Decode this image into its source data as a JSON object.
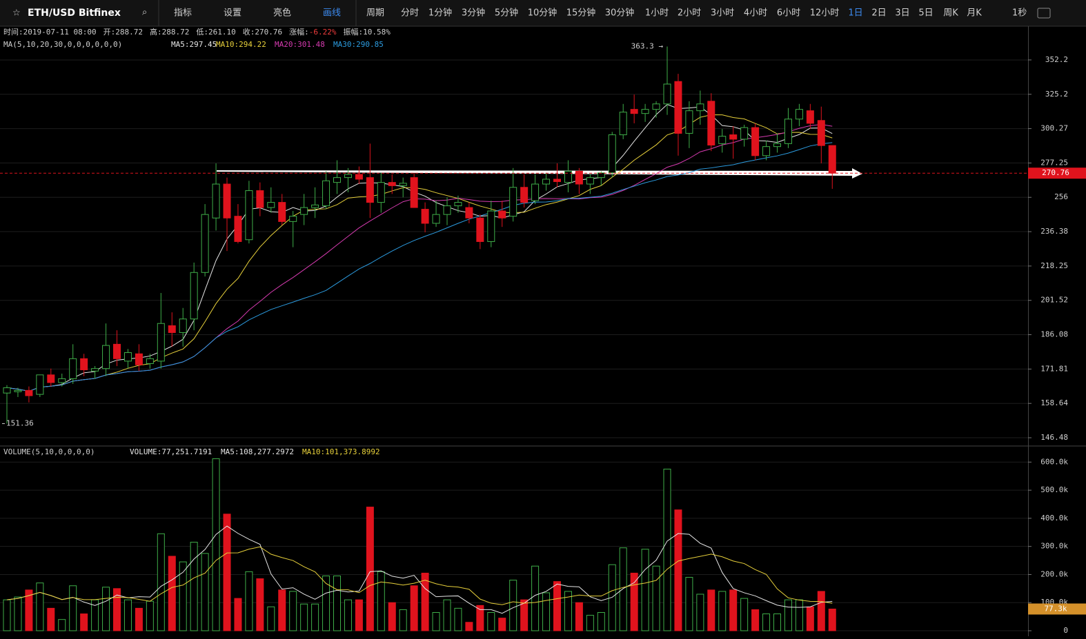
{
  "toolbar": {
    "symbol": "ETH/USD Bitfinex",
    "items": [
      "指标",
      "设置",
      "亮色",
      "画线",
      "周期",
      "分时",
      "1分钟",
      "3分钟",
      "5分钟",
      "10分钟",
      "15分钟",
      "30分钟",
      "1小时",
      "2小时",
      "3小时",
      "4小时",
      "6小时",
      "12小时",
      "1日",
      "2日",
      "3日",
      "5日",
      "周K",
      "月K"
    ],
    "right": "1秒"
  },
  "info": [
    {
      "label": "时间:",
      "value": "2019-07-11 08:00"
    },
    {
      "label": "开:",
      "value": "288.72"
    },
    {
      "label": "高:",
      "value": "288.72"
    },
    {
      "label": "低:",
      "value": "261.10"
    },
    {
      "label": "收:",
      "value": "270.76"
    },
    {
      "label": "涨幅:",
      "value": "-6.22%"
    },
    {
      "label": "振幅:",
      "value": "10.58%"
    }
  ],
  "chart_data": [
    {
      "type": "candlestick",
      "title": "MA(5,10,20,30,0,0,0,0,0,0)",
      "log_scale": true,
      "grid": true,
      "up_color": "#3fae49",
      "down_color": "#e0131d",
      "series": [
        {
          "name": "MA5:297.45",
          "period": 5,
          "color": "#e6e6e6"
        },
        {
          "name": "MA10:294.22",
          "period": 10,
          "color": "#e8d13b"
        },
        {
          "name": "MA20:301.48",
          "period": 20,
          "color": "#d63bb0"
        },
        {
          "name": "MA30:290.85",
          "period": 30,
          "color": "#2c9ce0"
        }
      ],
      "open": [
        162.5,
        163,
        163.5,
        162,
        169.5,
        166.5,
        168,
        176,
        171,
        172,
        182,
        175,
        178,
        174,
        175,
        190,
        187,
        193,
        215,
        244,
        264,
        245,
        232,
        260,
        250,
        253,
        242,
        246,
        250,
        251,
        265,
        268,
        270,
        268,
        253,
        265,
        263,
        268,
        249,
        241,
        246,
        251,
        250,
        244,
        231,
        248,
        245,
        262,
        254,
        264,
        267,
        265,
        272,
        264,
        268,
        271,
        296,
        314,
        311,
        314,
        318,
        335,
        297,
        313,
        320,
        290,
        296,
        293,
        301,
        282,
        288,
        290,
        307,
        313,
        306,
        288.72
      ],
      "high": [
        165.5,
        164.5,
        165,
        168,
        172,
        170,
        182,
        178,
        173,
        191,
        188,
        180,
        182,
        178,
        205,
        196,
        198,
        220,
        252,
        277,
        268,
        252,
        266,
        265,
        262,
        258,
        248,
        258,
        262,
        272,
        279,
        274,
        275,
        290,
        271,
        270,
        268,
        271,
        253,
        254,
        256,
        257,
        253,
        246,
        254,
        254,
        274,
        270,
        270,
        271,
        277,
        279,
        274,
        270,
        272,
        298,
        318,
        325,
        318,
        320,
        363.3,
        341,
        320,
        328,
        326,
        300,
        302,
        303,
        304,
        292,
        297,
        315,
        318,
        318,
        316,
        288.72
      ],
      "low": [
        151.36,
        161,
        159,
        161,
        165,
        165,
        166,
        169,
        168,
        169,
        173,
        172,
        171,
        172,
        172,
        181,
        181,
        188,
        213,
        237,
        226,
        230,
        230,
        245,
        247,
        240,
        228,
        240,
        244,
        249,
        258,
        259,
        264,
        244,
        247,
        258,
        256,
        250,
        236,
        239,
        240,
        247,
        241,
        227,
        228,
        239,
        242,
        250,
        252,
        260,
        262,
        259,
        258,
        258,
        263,
        268,
        293,
        304,
        305,
        308,
        310,
        282,
        287,
        303,
        285,
        284,
        280,
        288,
        279,
        279,
        284,
        287,
        302,
        300,
        277,
        261.1
      ],
      "close": [
        164.5,
        163.5,
        161.5,
        169.5,
        166.5,
        168,
        176,
        171.5,
        172,
        181.5,
        176,
        178.5,
        173.5,
        176,
        191,
        187,
        193,
        215,
        246,
        264,
        244,
        231,
        260,
        250,
        253,
        242,
        245,
        250,
        251.5,
        266,
        268,
        270,
        267,
        253,
        265,
        263,
        264.5,
        250,
        241,
        246,
        251,
        253,
        244,
        231,
        248,
        244,
        262,
        253,
        264,
        267,
        265.5,
        272,
        264,
        268,
        271,
        296,
        312,
        311,
        314,
        318,
        333,
        297,
        313,
        318,
        289,
        295,
        293,
        301,
        282,
        288,
        290,
        307,
        314,
        304,
        288.7,
        270.76
      ],
      "ylim": [
        144.16,
        380.9
      ],
      "yticks": [
        146.48,
        158.64,
        171.81,
        186.08,
        201.52,
        218.25,
        236.38,
        256.0,
        277.25,
        300.27,
        325.2,
        352.2
      ],
      "annotations": [
        {
          "text": "363.3 →"
        },
        {
          "text": "151.36"
        }
      ]
    },
    {
      "type": "bar",
      "title": "VOLUME(5,10,0,0,0,0)",
      "grid": true,
      "badge_color": "#d4902a",
      "last_label": "77.3k",
      "series": [
        {
          "name": "VOLUME:77,251.7191",
          "color": "#e6e6e6"
        },
        {
          "name": "MA5:108,277.2972",
          "period": 5,
          "color": "#e6e6e6"
        },
        {
          "name": "MA10:101,373.8992",
          "period": 10,
          "color": "#e8d13b"
        }
      ],
      "values": [
        110000,
        120000,
        145000,
        170000,
        80000,
        40000,
        160000,
        60000,
        110000,
        155000,
        150000,
        110000,
        80000,
        105000,
        345000,
        265000,
        245000,
        315000,
        275000,
        612000,
        415000,
        115000,
        210000,
        185000,
        85000,
        145000,
        140000,
        95000,
        95000,
        195000,
        195000,
        110000,
        110000,
        440000,
        210000,
        100000,
        75000,
        160000,
        205000,
        65000,
        110000,
        80000,
        30000,
        90000,
        65000,
        45000,
        180000,
        110000,
        230000,
        135000,
        175000,
        140000,
        100000,
        55000,
        65000,
        235000,
        295000,
        205000,
        290000,
        230000,
        575000,
        430000,
        190000,
        130000,
        145000,
        140000,
        145000,
        115000,
        75000,
        60000,
        60000,
        110000,
        110000,
        85000,
        140000,
        77251.7191
      ],
      "ylim": [
        0,
        645000
      ],
      "yticks": [
        0,
        {
          "value": 100000,
          "label": "100.0k"
        },
        {
          "value": 200000,
          "label": "200.0k"
        },
        {
          "value": 300000,
          "label": "300.0k"
        },
        {
          "value": 400000,
          "label": "400.0k"
        },
        {
          "value": 500000,
          "label": "500.0k"
        },
        {
          "value": 600000,
          "label": "600.0k"
        }
      ]
    }
  ]
}
